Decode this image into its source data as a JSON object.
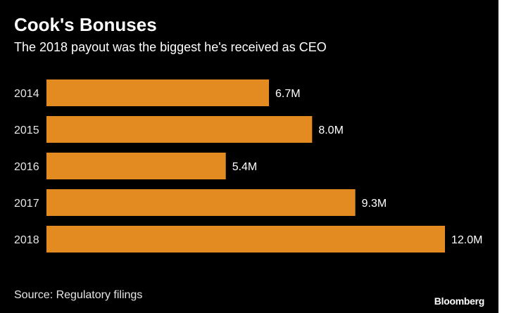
{
  "header": {
    "title": "Cook's Bonuses",
    "subtitle": "The 2018 payout was the biggest he's received as CEO"
  },
  "footer": {
    "source": "Source: Regulatory filings",
    "brand": "Bloomberg"
  },
  "colors": {
    "background": "#000000",
    "bar": "#E38A21",
    "text": "#FFFFFF"
  },
  "chart_data": {
    "type": "bar",
    "orientation": "horizontal",
    "title": "Cook's Bonuses",
    "subtitle": "The 2018 payout was the biggest he's received as CEO",
    "categories": [
      "2014",
      "2015",
      "2016",
      "2017",
      "2018"
    ],
    "values": [
      6.7,
      8.0,
      5.4,
      9.3,
      12.0
    ],
    "value_labels": [
      "6.7M",
      "8.0M",
      "5.4M",
      "9.3M",
      "12.0M"
    ],
    "unit": "M",
    "xlabel": "",
    "ylabel": "",
    "xlim": [
      0,
      12
    ],
    "grid": false,
    "legend": "none"
  }
}
